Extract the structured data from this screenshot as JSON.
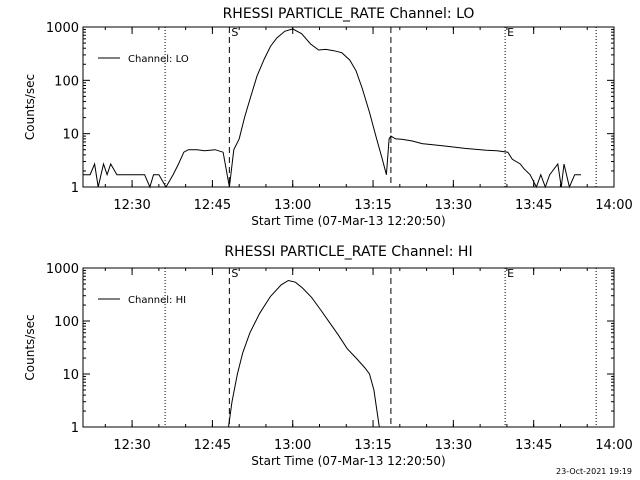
{
  "timestamp": "23-Oct-2021 19:19",
  "chart_data": [
    {
      "type": "line",
      "title": "RHESSI PARTICLE_RATE Channel: LO",
      "xlabel": "Start Time (07-Mar-13 12:20:50)",
      "ylabel": "Counts/sec",
      "y_scale": "log",
      "ylim": [
        1,
        1000
      ],
      "y_ticks": [
        "1",
        "10",
        "100",
        "1000"
      ],
      "xlim": [
        "12:20:50",
        "14:00:00"
      ],
      "x_ticks": [
        "12:30",
        "12:45",
        "13:00",
        "13:15",
        "13:30",
        "13:45",
        "14:00"
      ],
      "legend": "top-left",
      "series": [
        {
          "name": "Channel: LO",
          "x": [
            "12:20:50",
            "12:22:10",
            "12:23:00",
            "12:23:40",
            "12:24:40",
            "12:25:20",
            "12:26:00",
            "12:27:10",
            "12:28:00",
            "12:29:40",
            "12:31:00",
            "12:32:20",
            "12:33:20",
            "12:34:00",
            "12:35:00",
            "12:36:20",
            "12:37:40",
            "12:38:40",
            "12:39:40",
            "12:40:30",
            "12:42:10",
            "12:43:30",
            "12:45:30",
            "12:47:00",
            "12:48:10",
            "12:49:00",
            "12:50:00",
            "12:51:00",
            "12:52:10",
            "12:53:20",
            "12:54:40",
            "12:55:50",
            "12:57:00",
            "12:58:30",
            "13:00:00",
            "13:01:40",
            "13:03:20",
            "13:04:50",
            "13:06:10",
            "13:07:40",
            "13:09:10",
            "13:10:40",
            "13:11:50",
            "13:13:00",
            "13:14:20",
            "13:15:40",
            "13:16:40",
            "13:17:30",
            "13:18:00",
            "13:18:20",
            "13:19:10",
            "13:20:30",
            "13:22:20",
            "13:24:10",
            "13:26:10",
            "13:28:10",
            "13:30:10",
            "13:32:10",
            "13:34:00",
            "13:36:10",
            "13:38:10",
            "13:40:10",
            "13:41:00",
            "13:42:30",
            "13:43:10",
            "13:44:20",
            "13:45:30",
            "13:46:20",
            "13:47:10",
            "13:48:00",
            "13:49:30",
            "13:50:10",
            "13:50:40",
            "13:51:40",
            "13:52:40",
            "13:53:50"
          ],
          "y": [
            1.7,
            1.7,
            2.7,
            1.0,
            2.7,
            1.7,
            2.7,
            1.7,
            1.7,
            1.7,
            1.7,
            1.7,
            1.0,
            1.7,
            1.7,
            1.0,
            1.7,
            2.7,
            4.5,
            5.0,
            5.0,
            4.8,
            5.0,
            4.5,
            1.0,
            5.0,
            8,
            20,
            50,
            120,
            250,
            430,
            620,
            830,
            920,
            750,
            480,
            370,
            380,
            360,
            330,
            240,
            150,
            70,
            25,
            8,
            3.5,
            1.7,
            8,
            9,
            8,
            7.8,
            7.3,
            6.5,
            6.2,
            5.9,
            5.6,
            5.3,
            5.1,
            4.9,
            4.8,
            4.5,
            3.3,
            2.7,
            2.2,
            1.7,
            1.0,
            1.7,
            1.0,
            1.7,
            2.7,
            1.0,
            2.7,
            1.0,
            1.7,
            1.7
          ]
        }
      ],
      "markers": [
        {
          "time": "12:48:10",
          "label": "S",
          "style": "dashed"
        },
        {
          "time": "13:18:20",
          "label": "",
          "style": "dashed"
        },
        {
          "time": "12:36:10",
          "label": "",
          "style": "dotted"
        },
        {
          "time": "13:39:40",
          "label": "E",
          "style": "dotted"
        },
        {
          "time": "13:56:40",
          "label": "",
          "style": "dotted"
        }
      ]
    },
    {
      "type": "line",
      "title": "RHESSI PARTICLE_RATE Channel: HI",
      "xlabel": "Start Time (07-Mar-13 12:20:50)",
      "ylabel": "Counts/sec",
      "y_scale": "log",
      "ylim": [
        1,
        1000
      ],
      "y_ticks": [
        "1",
        "10",
        "100",
        "1000"
      ],
      "xlim": [
        "12:20:50",
        "14:00:00"
      ],
      "x_ticks": [
        "12:30",
        "12:45",
        "13:00",
        "13:15",
        "13:30",
        "13:45",
        "14:00"
      ],
      "legend": "top-left",
      "series": [
        {
          "name": "Channel: HI",
          "x": [
            "12:48:00",
            "12:48:40",
            "12:49:40",
            "12:50:40",
            "12:52:00",
            "12:53:50",
            "12:55:50",
            "12:57:50",
            "12:59:10",
            "13:00:30",
            "13:01:50",
            "13:03:30",
            "13:05:10",
            "13:06:50",
            "13:08:30",
            "13:10:10",
            "13:11:50",
            "13:13:30",
            "13:14:20",
            "13:15:10",
            "13:16:10"
          ],
          "y": [
            1.0,
            3.0,
            10,
            25,
            60,
            140,
            290,
            480,
            580,
            540,
            420,
            280,
            165,
            95,
            55,
            30,
            20,
            13,
            10,
            5,
            1.0
          ]
        }
      ],
      "markers": [
        {
          "time": "12:48:10",
          "label": "S",
          "style": "dashed"
        },
        {
          "time": "13:18:20",
          "label": "",
          "style": "dashed"
        },
        {
          "time": "12:36:10",
          "label": "",
          "style": "dotted"
        },
        {
          "time": "13:39:40",
          "label": "E",
          "style": "dotted"
        },
        {
          "time": "13:56:40",
          "label": "",
          "style": "dotted"
        }
      ]
    }
  ]
}
